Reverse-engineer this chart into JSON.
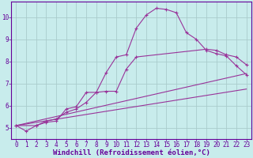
{
  "xlabel": "Windchill (Refroidissement éolien,°C)",
  "bg_color": "#c8ecec",
  "line_color": "#993399",
  "grid_color": "#aacccc",
  "axis_label_color": "#660099",
  "tick_label_color": "#660099",
  "lines": [
    {
      "x": [
        0,
        1,
        2,
        3,
        4,
        5,
        6,
        7,
        8,
        9,
        10,
        11,
        12,
        13,
        14,
        15,
        16,
        17,
        18,
        19,
        20,
        21,
        22,
        23
      ],
      "y": [
        5.1,
        4.85,
        5.1,
        5.25,
        5.3,
        5.85,
        5.95,
        6.6,
        6.6,
        7.5,
        8.2,
        8.3,
        9.5,
        10.1,
        10.4,
        10.35,
        10.2,
        9.3,
        9.0,
        8.5,
        8.35,
        8.25,
        7.8,
        7.4
      ],
      "marker": true
    },
    {
      "x": [
        0,
        2,
        3,
        4,
        5,
        6,
        7,
        8,
        9,
        10,
        11,
        12,
        19,
        20,
        21,
        22,
        23
      ],
      "y": [
        5.1,
        5.1,
        5.3,
        5.4,
        5.7,
        5.85,
        6.15,
        6.6,
        6.65,
        6.65,
        7.65,
        8.2,
        8.55,
        8.5,
        8.3,
        8.2,
        7.85
      ],
      "marker": true
    },
    {
      "x": [
        0,
        23
      ],
      "y": [
        5.1,
        7.45
      ],
      "marker": false
    },
    {
      "x": [
        0,
        23
      ],
      "y": [
        5.1,
        6.75
      ],
      "marker": false
    }
  ],
  "xlim": [
    -0.5,
    23.5
  ],
  "ylim": [
    4.5,
    10.7
  ],
  "xticks": [
    0,
    1,
    2,
    3,
    4,
    5,
    6,
    7,
    8,
    9,
    10,
    11,
    12,
    13,
    14,
    15,
    16,
    17,
    18,
    19,
    20,
    21,
    22,
    23
  ],
  "yticks": [
    5,
    6,
    7,
    8,
    9,
    10
  ],
  "tick_fontsize": 5.5,
  "xlabel_fontsize": 6.5,
  "lw": 0.8,
  "marker_size": 2.8
}
